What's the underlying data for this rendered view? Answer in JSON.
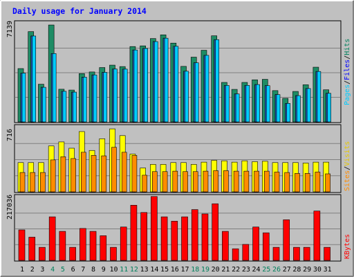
{
  "chart_data": [
    {
      "type": "bar",
      "panel": "hits-files-pages",
      "title": "Daily usage for January 2014",
      "ylabel": "Pages / Files / Hits",
      "ymax_label": "7139",
      "ylim": [
        0,
        7139
      ],
      "grid": true,
      "categories": [
        "1",
        "2",
        "3",
        "4",
        "5",
        "6",
        "7",
        "8",
        "9",
        "10",
        "11",
        "12",
        "13",
        "14",
        "15",
        "16",
        "17",
        "18",
        "19",
        "20",
        "21",
        "22",
        "23",
        "24",
        "25",
        "26",
        "27",
        "28",
        "29",
        "30",
        "31"
      ],
      "series": [
        {
          "name": "Hits",
          "color": "#1e8c64",
          "values": [
            3870,
            6555,
            2735,
            7035,
            2370,
            2310,
            3505,
            3625,
            3945,
            4120,
            4015,
            5470,
            5520,
            6050,
            6320,
            5720,
            4030,
            4700,
            5200,
            6250,
            2865,
            2360,
            2865,
            3055,
            3090,
            2270,
            1710,
            2210,
            2695,
            3970,
            2330
          ]
        },
        {
          "name": "Files",
          "color": "#00ccff",
          "values": [
            3535,
            6235,
            2510,
            4960,
            2220,
            2160,
            3245,
            3410,
            3595,
            3835,
            3830,
            5220,
            5330,
            5830,
            6075,
            5490,
            3680,
            4290,
            4830,
            5970,
            2645,
            2030,
            2650,
            2710,
            2630,
            1980,
            1340,
            1905,
            2420,
            3660,
            2075
          ]
        },
        {
          "name": "Pages",
          "color": "#00ccff",
          "values": [
            3535,
            6235,
            2510,
            4960,
            2220,
            2160,
            3245,
            3410,
            3595,
            3835,
            3830,
            5220,
            5330,
            5830,
            6075,
            5490,
            3680,
            4290,
            4830,
            5970,
            2645,
            2030,
            2650,
            2710,
            2630,
            1980,
            1340,
            1905,
            2420,
            3660,
            2075
          ]
        }
      ]
    },
    {
      "type": "bar",
      "panel": "visits-sites",
      "ylabel": "Sites / Visits",
      "ymax_label": "716",
      "ylim": [
        0,
        716
      ],
      "grid": true,
      "categories": [
        "1",
        "2",
        "3",
        "4",
        "5",
        "6",
        "7",
        "8",
        "9",
        "10",
        "11",
        "12",
        "13",
        "14",
        "15",
        "16",
        "17",
        "18",
        "19",
        "20",
        "21",
        "22",
        "23",
        "24",
        "25",
        "26",
        "27",
        "28",
        "29",
        "30",
        "31"
      ],
      "series": [
        {
          "name": "Visits",
          "color": "#ffff00",
          "values": [
            325,
            325,
            325,
            510,
            555,
            485,
            670,
            460,
            590,
            700,
            625,
            420,
            265,
            305,
            305,
            325,
            325,
            305,
            330,
            350,
            345,
            330,
            345,
            335,
            340,
            325,
            325,
            325,
            320,
            330,
            330
          ]
        },
        {
          "name": "Sites",
          "color": "#ff8c00",
          "values": [
            215,
            215,
            215,
            355,
            390,
            370,
            440,
            405,
            400,
            495,
            440,
            405,
            185,
            225,
            225,
            230,
            225,
            225,
            230,
            235,
            235,
            230,
            230,
            230,
            230,
            220,
            215,
            205,
            205,
            220,
            200
          ]
        }
      ]
    },
    {
      "type": "bar",
      "panel": "kbytes",
      "ylabel": "KBytes",
      "ymax_label": "217036",
      "ylim": [
        0,
        217036
      ],
      "grid": true,
      "categories": [
        "1",
        "2",
        "3",
        "4",
        "5",
        "6",
        "7",
        "8",
        "9",
        "10",
        "11",
        "12",
        "13",
        "14",
        "15",
        "16",
        "17",
        "18",
        "19",
        "20",
        "21",
        "22",
        "23",
        "24",
        "25",
        "26",
        "27",
        "28",
        "29",
        "30",
        "31"
      ],
      "series": [
        {
          "name": "KBytes",
          "color": "#ff0000",
          "values": [
            105000,
            80000,
            45000,
            150000,
            100000,
            45000,
            110000,
            100000,
            85000,
            45000,
            115000,
            190000,
            165000,
            220000,
            150000,
            135000,
            150000,
            175000,
            160000,
            195000,
            100000,
            40000,
            55000,
            115000,
            95000,
            45000,
            140000,
            45000,
            45000,
            170000,
            45000
          ]
        }
      ]
    }
  ],
  "x_tick_labels": [
    "1",
    "2",
    "3",
    "4",
    "5",
    "6",
    "7",
    "8",
    "9",
    "10",
    "11",
    "12",
    "13",
    "14",
    "15",
    "16",
    "17",
    "18",
    "19",
    "20",
    "21",
    "22",
    "23",
    "24",
    "25",
    "26",
    "27",
    "28",
    "29",
    "30",
    "31"
  ],
  "weekend_days": [
    "4",
    "5",
    "11",
    "12",
    "18",
    "19",
    "25",
    "26"
  ],
  "colors": {
    "background": "#c0c0c0",
    "title": "#0000ff",
    "label": "#000000",
    "weekend_tick": "#00805c",
    "gridline": "#808080"
  },
  "legend_labels": {
    "panel1": [
      "Pages",
      "Files",
      "Hits"
    ],
    "panel2": [
      "Sites",
      "Visits"
    ],
    "panel3": [
      "KBytes"
    ]
  }
}
